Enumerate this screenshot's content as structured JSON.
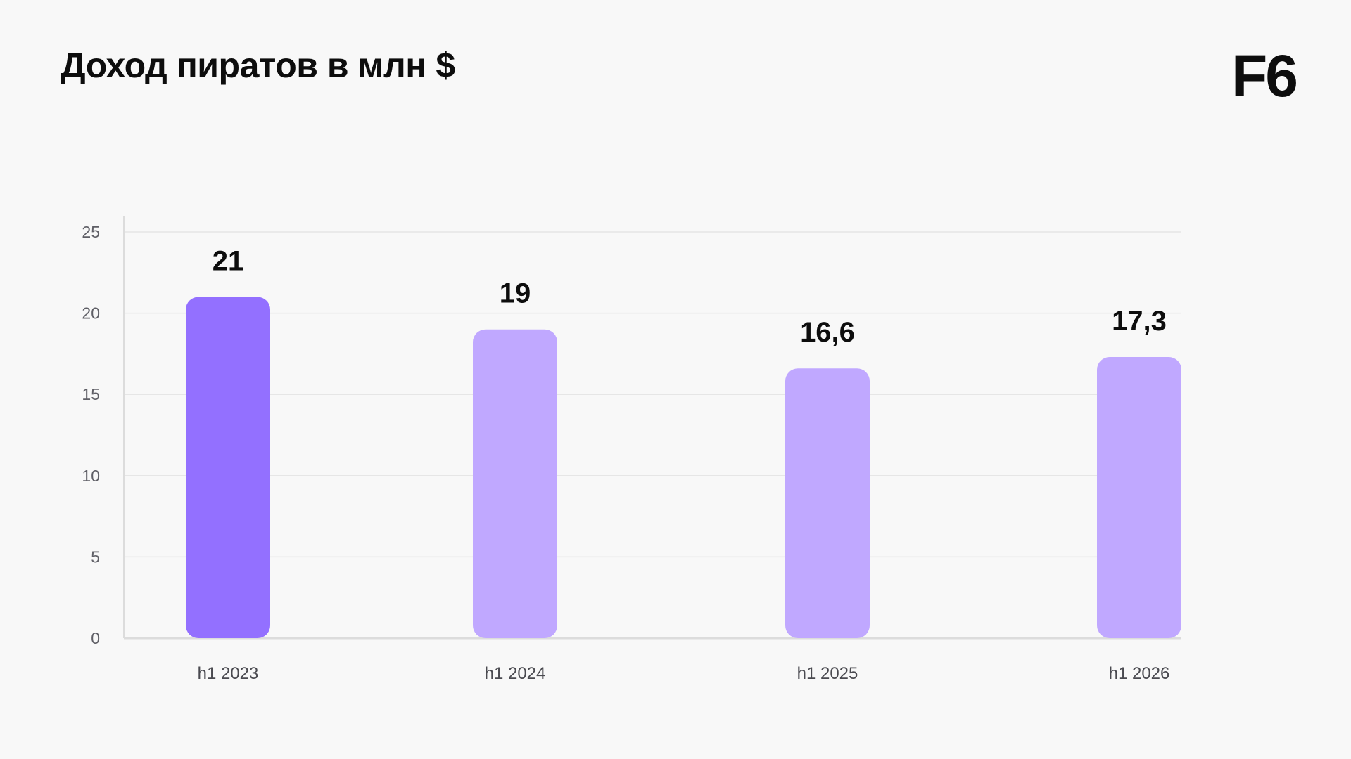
{
  "header": {
    "title": "Доход пиратов в млн $",
    "logo": "F6"
  },
  "colors": {
    "background": "#f8f8f8",
    "bar_highlight": "#9370ff",
    "bar_default": "#c0a8ff",
    "grid": "#e6e6e6",
    "axis": "#dcdcdc"
  },
  "chart_data": {
    "type": "bar",
    "categories": [
      "h1 2023",
      "h1 2024",
      "h1 2025",
      "h1 2026"
    ],
    "values": [
      21,
      19,
      16.6,
      17.3
    ],
    "data_labels": [
      "21",
      "19",
      "16,6",
      "17,3"
    ],
    "highlight_index": 0,
    "title": "Доход пиратов в млн $",
    "xlabel": "",
    "ylabel": "",
    "ylim": [
      0,
      25
    ],
    "yticks": [
      0,
      5,
      10,
      15,
      20,
      25
    ],
    "grid": true,
    "legend": "none"
  }
}
